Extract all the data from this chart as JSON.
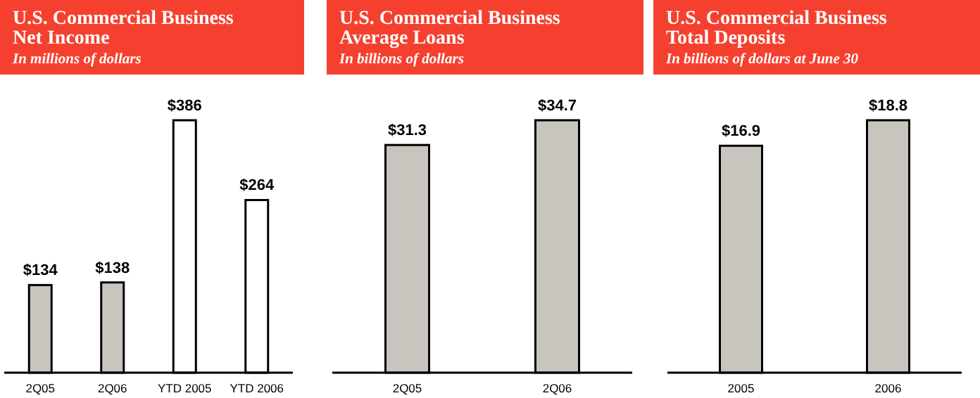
{
  "chart_data": [
    {
      "type": "bar",
      "title": "U.S. Commercial Business\nNet Income",
      "subtitle": "In millions of dollars",
      "categories": [
        "2Q05",
        "2Q06",
        "YTD 2005",
        "YTD 2006"
      ],
      "values": [
        134,
        138,
        386,
        264
      ],
      "colors": [
        "#c8c5be",
        "#c8c5be",
        "#ffffff",
        "#ffffff"
      ],
      "value_labels": [
        "$134",
        "$138",
        "$386",
        "$264"
      ]
    },
    {
      "type": "bar",
      "title": "U.S. Commercial Business\nAverage Loans",
      "subtitle": "In billions of dollars",
      "categories": [
        "2Q05",
        "2Q06"
      ],
      "values": [
        31.3,
        34.7
      ],
      "colors": [
        "#c8c5be",
        "#c8c5be"
      ],
      "value_labels": [
        "$31.3",
        "$34.7"
      ]
    },
    {
      "type": "bar",
      "title": "U.S. Commercial Business\nTotal Deposits",
      "subtitle": "In billions of dollars at June 30",
      "categories": [
        "2005",
        "2006"
      ],
      "values": [
        16.9,
        18.8
      ],
      "colors": [
        "#c8c5be",
        "#c8c5be"
      ],
      "value_labels": [
        "$16.9",
        "$18.8"
      ]
    }
  ]
}
